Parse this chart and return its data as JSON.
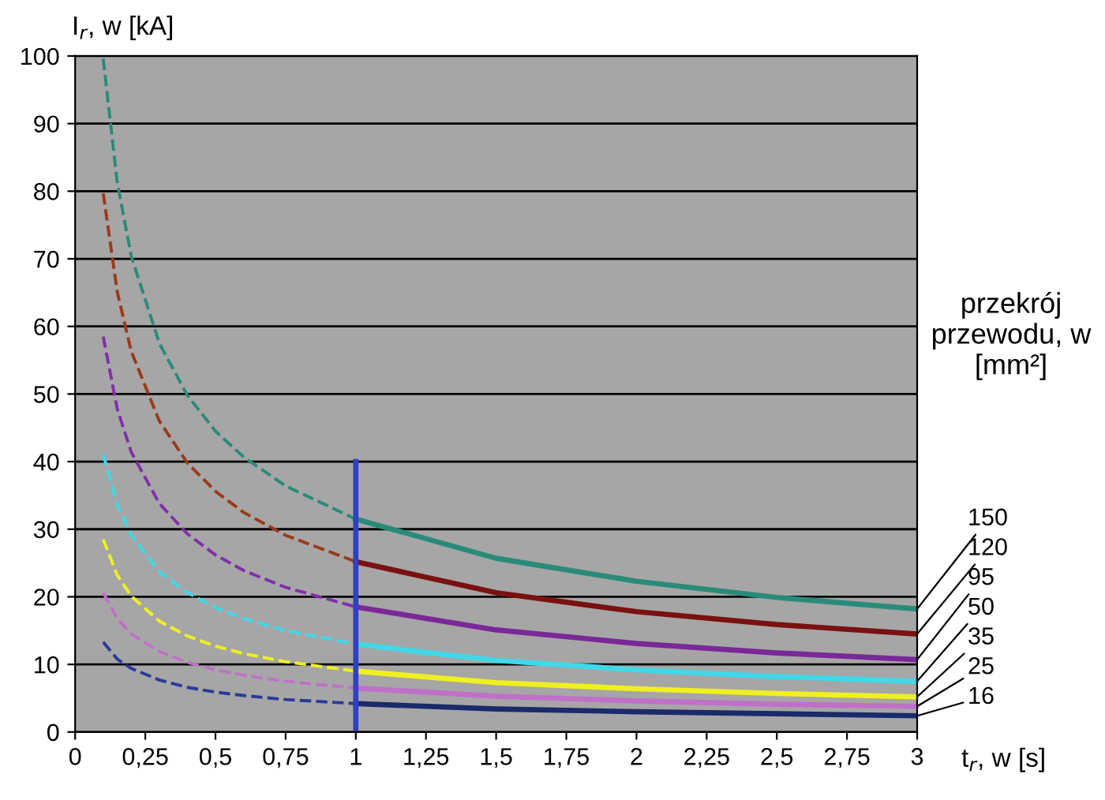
{
  "chart_data": {
    "type": "line",
    "xlabel": "t$_{r}$, w [s]",
    "ylabel": "I$_{r}$, w [kA]",
    "legend_title": "przekrój przewodu, w [mm²]",
    "xlim": [
      0,
      3
    ],
    "ylim": [
      0,
      100
    ],
    "xticks": [
      0,
      {
        "value": 0.25,
        "label": "0,25"
      },
      {
        "value": 0.5,
        "label": "0,5"
      },
      {
        "value": 0.75,
        "label": "0,75"
      },
      1,
      {
        "value": 1.25,
        "label": "1,25"
      },
      {
        "value": 1.5,
        "label": "1,5"
      },
      {
        "value": 1.75,
        "label": "1,75"
      },
      2,
      {
        "value": 2.25,
        "label": "2,25"
      },
      {
        "value": 2.5,
        "label": "2,5"
      },
      {
        "value": 2.75,
        "label": "2,75"
      },
      3
    ],
    "yticks": [
      0,
      10,
      20,
      30,
      40,
      50,
      60,
      70,
      80,
      90,
      100
    ],
    "grid": "y",
    "legend": false,
    "series": [
      {
        "x": [
          0.1,
          0.15,
          0.2,
          0.3,
          0.4,
          0.5,
          0.6,
          0.75,
          1
        ],
        "color": "#2a8a7a",
        "line_style": "dashed",
        "values": [
          99.6,
          81.3,
          70.4,
          57.5,
          49.8,
          44.5,
          40.7,
          36.4,
          31.5
        ]
      },
      {
        "x": [
          0.1,
          0.15,
          0.2,
          0.3,
          0.4,
          0.5,
          0.6,
          0.75,
          1
        ],
        "color": "#9a3a1a",
        "line_style": "dashed",
        "values": [
          79.7,
          65.1,
          56.3,
          46,
          39.8,
          35.6,
          32.5,
          29.1,
          25.2
        ]
      },
      {
        "x": [
          0.1,
          0.15,
          0.2,
          0.3,
          0.4,
          0.5,
          0.6,
          0.75,
          1
        ],
        "color": "#8030a8",
        "line_style": "dashed",
        "values": [
          58.5,
          47.8,
          41.4,
          33.8,
          29.3,
          26.2,
          23.9,
          21.4,
          18.5
        ]
      },
      {
        "x": [
          0.1,
          0.15,
          0.2,
          0.3,
          0.4,
          0.5,
          0.6,
          0.75,
          1
        ],
        "color": "#40d8e8",
        "line_style": "dashed",
        "values": [
          41.1,
          33.6,
          29.1,
          23.7,
          20.6,
          18.4,
          16.8,
          15,
          13
        ]
      },
      {
        "x": [
          0.1,
          0.15,
          0.2,
          0.3,
          0.4,
          0.5,
          0.6,
          0.75,
          1
        ],
        "color": "#f0f020",
        "line_style": "dashed",
        "values": [
          28.5,
          23.2,
          20.1,
          16.4,
          14.2,
          12.7,
          11.6,
          10.4,
          9
        ]
      },
      {
        "x": [
          0.1,
          0.15,
          0.2,
          0.3,
          0.4,
          0.5,
          0.6,
          0.75,
          1
        ],
        "color": "#c070c8",
        "line_style": "dashed",
        "values": [
          20.6,
          16.8,
          14.5,
          11.9,
          10.3,
          9.2,
          8.4,
          7.5,
          6.5
        ]
      },
      {
        "x": [
          0.1,
          0.15,
          0.2,
          0.3,
          0.4,
          0.5,
          0.6,
          0.75,
          1
        ],
        "color": "#2a3a9a",
        "line_style": "dashed",
        "values": [
          13.3,
          10.8,
          9.4,
          7.7,
          6.6,
          5.9,
          5.4,
          4.8,
          4.2
        ]
      },
      {
        "name": "150",
        "x": [
          1,
          1.5,
          2,
          2.5,
          3
        ],
        "color": "#2a8a7a",
        "line_style": "solid",
        "values": [
          31.5,
          25.7,
          22.3,
          19.9,
          18.2
        ]
      },
      {
        "name": "120",
        "x": [
          1,
          1.5,
          2,
          2.5,
          3
        ],
        "color": "#7a1010",
        "line_style": "solid",
        "values": [
          25.2,
          20.6,
          17.8,
          15.9,
          14.5
        ]
      },
      {
        "name": "95",
        "x": [
          1,
          1.5,
          2,
          2.5,
          3
        ],
        "color": "#7a2898",
        "line_style": "solid",
        "values": [
          18.5,
          15.1,
          13.1,
          11.7,
          10.7
        ]
      },
      {
        "name": "50",
        "x": [
          1,
          1.5,
          2,
          2.5,
          3
        ],
        "color": "#40d8e8",
        "line_style": "solid",
        "values": [
          13,
          10.6,
          9.2,
          8.2,
          7.5
        ]
      },
      {
        "name": "35",
        "x": [
          1,
          1.5,
          2,
          2.5,
          3
        ],
        "color": "#f0f020",
        "line_style": "solid",
        "values": [
          9,
          7.3,
          6.4,
          5.7,
          5.2
        ]
      },
      {
        "name": "25",
        "x": [
          1,
          1.5,
          2,
          2.5,
          3
        ],
        "color": "#c070c8",
        "line_style": "solid",
        "values": [
          6.5,
          5.3,
          4.6,
          4.1,
          3.8
        ]
      },
      {
        "name": "16",
        "x": [
          1,
          1.5,
          2,
          2.5,
          3
        ],
        "color": "#1a2a6a",
        "line_style": "solid",
        "values": [
          4.2,
          3.4,
          3,
          2.7,
          2.4
        ]
      },
      {
        "x": [
          1,
          1
        ],
        "color": "#3040c0",
        "line_style": "solid",
        "values": [
          0,
          40
        ]
      }
    ]
  }
}
